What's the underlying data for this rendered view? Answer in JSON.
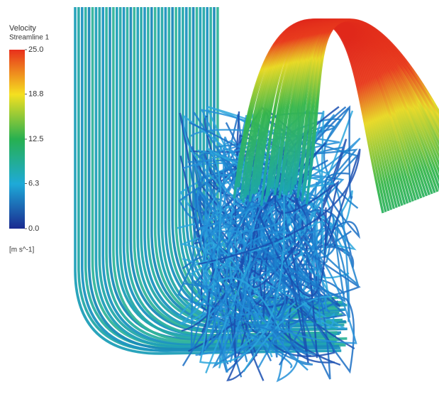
{
  "legend": {
    "title": "Velocity",
    "subtitle": "Streamline 1",
    "ticks": [
      {
        "value": 25,
        "label": "25.0"
      },
      {
        "value": 18.8,
        "label": "18.8"
      },
      {
        "value": 12.5,
        "label": "12.5"
      },
      {
        "value": 6.3,
        "label": "6.3"
      },
      {
        "value": 0,
        "label": "0.0"
      }
    ],
    "unit": "[m s^-1]"
  }
}
